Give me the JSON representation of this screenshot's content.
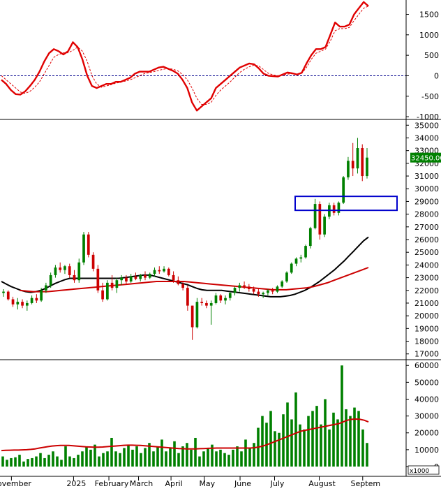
{
  "chart_data": [
    {
      "panel": "oscillator",
      "type": "line",
      "y_ticks": [
        -1000,
        -500,
        0,
        500,
        1000,
        1500
      ],
      "ylim": [
        -1050,
        1850
      ],
      "zero_line": true,
      "colors": {
        "main": "#e00000",
        "signal": "#e00000",
        "zero": "#00008b"
      },
      "series": [
        {
          "style": "solid",
          "values": [
            -100,
            -200,
            -350,
            -450,
            -460,
            -380,
            -250,
            -100,
            100,
            350,
            550,
            650,
            600,
            520,
            600,
            820,
            700,
            400,
            0,
            -250,
            -300,
            -250,
            -200,
            -200,
            -150,
            -150,
            -100,
            -50,
            50,
            100,
            100,
            100,
            150,
            200,
            220,
            170,
            120,
            50,
            -100,
            -300,
            -650,
            -850,
            -750,
            -650,
            -550,
            -300,
            -200,
            -100,
            0,
            100,
            200,
            250,
            300,
            280,
            180,
            50,
            0,
            -10,
            -20,
            30,
            80,
            60,
            30,
            70,
            300,
            500,
            650,
            650,
            700,
            1000,
            1300,
            1200,
            1200,
            1250,
            1500,
            1650,
            1800,
            1700
          ]
        },
        {
          "style": "dashed",
          "values": [
            0,
            -100,
            -200,
            -300,
            -400,
            -430,
            -380,
            -280,
            -150,
            50,
            250,
            450,
            520,
            560,
            560,
            620,
            700,
            600,
            350,
            0,
            -200,
            -280,
            -250,
            -220,
            -180,
            -160,
            -130,
            -100,
            -50,
            0,
            50,
            80,
            100,
            130,
            160,
            180,
            160,
            120,
            30,
            -100,
            -300,
            -550,
            -700,
            -700,
            -650,
            -480,
            -350,
            -250,
            -150,
            -30,
            80,
            160,
            220,
            260,
            240,
            150,
            60,
            20,
            0,
            10,
            40,
            50,
            40,
            60,
            200,
            400,
            550,
            600,
            650,
            850,
            1100,
            1150,
            1150,
            1180,
            1350,
            1500,
            1650,
            1700
          ]
        }
      ]
    },
    {
      "panel": "price",
      "type": "candlestick",
      "y_ticks": [
        17000,
        18000,
        19000,
        20000,
        21000,
        22000,
        23000,
        24000,
        25000,
        26000,
        27000,
        28000,
        29000,
        30000,
        31000,
        32000,
        33000,
        34000,
        35000
      ],
      "ylim": [
        16600,
        35400
      ],
      "last_price": "32450.00",
      "colors": {
        "up": "#008000",
        "down": "#cc0000",
        "ma_long": "#000000",
        "ma_short": "#cc0000",
        "box": "#0000cc",
        "price_tag": "#008000"
      },
      "candles": [
        [
          21800,
          22100,
          21500,
          21900
        ],
        [
          21900,
          22000,
          21200,
          21300
        ],
        [
          21300,
          21500,
          20700,
          20900
        ],
        [
          20900,
          21400,
          20500,
          21100
        ],
        [
          21100,
          21300,
          20600,
          20800
        ],
        [
          20800,
          21200,
          20400,
          21000
        ],
        [
          21000,
          21600,
          20900,
          21400
        ],
        [
          21400,
          21700,
          21000,
          21200
        ],
        [
          21200,
          22200,
          21100,
          22000
        ],
        [
          22000,
          22600,
          21800,
          22400
        ],
        [
          22400,
          23400,
          22200,
          23200
        ],
        [
          23200,
          24000,
          23000,
          23800
        ],
        [
          23800,
          24200,
          23400,
          23600
        ],
        [
          23600,
          24000,
          23300,
          23900
        ],
        [
          23900,
          24100,
          23000,
          23200
        ],
        [
          23200,
          23600,
          22600,
          22800
        ],
        [
          22800,
          24500,
          22600,
          24200
        ],
        [
          24200,
          26600,
          24000,
          26400
        ],
        [
          26400,
          26600,
          24600,
          24800
        ],
        [
          24800,
          25000,
          23500,
          23700
        ],
        [
          23700,
          24000,
          21800,
          22000
        ],
        [
          22000,
          22600,
          21100,
          21300
        ],
        [
          21300,
          22800,
          21200,
          22600
        ],
        [
          22600,
          23200,
          22000,
          22200
        ],
        [
          22200,
          23000,
          21800,
          22800
        ],
        [
          22800,
          23200,
          22400,
          23000
        ],
        [
          23000,
          23200,
          22500,
          22700
        ],
        [
          22700,
          23300,
          22600,
          23100
        ],
        [
          23100,
          23400,
          22800,
          22900
        ],
        [
          22900,
          23300,
          22700,
          23200
        ],
        [
          23200,
          23500,
          22800,
          23000
        ],
        [
          23000,
          23400,
          22900,
          23300
        ],
        [
          23300,
          23800,
          23100,
          23600
        ],
        [
          23600,
          23900,
          23300,
          23500
        ],
        [
          23500,
          23900,
          23400,
          23700
        ],
        [
          23700,
          23800,
          23100,
          23200
        ],
        [
          23200,
          23500,
          22600,
          22800
        ],
        [
          22800,
          23100,
          22400,
          22500
        ],
        [
          22500,
          22700,
          22000,
          22200
        ],
        [
          22200,
          22400,
          20400,
          20800
        ],
        [
          20800,
          20800,
          18100,
          19100
        ],
        [
          19100,
          21400,
          19000,
          21100
        ],
        [
          21100,
          21400,
          20800,
          21000
        ],
        [
          21000,
          21200,
          20600,
          20800
        ],
        [
          20800,
          21200,
          19300,
          21000
        ],
        [
          21000,
          21800,
          20900,
          21600
        ],
        [
          21600,
          21700,
          21000,
          21200
        ],
        [
          21200,
          21600,
          20900,
          21400
        ],
        [
          21400,
          21900,
          21200,
          21800
        ],
        [
          21800,
          22300,
          21600,
          22200
        ],
        [
          22200,
          22600,
          21900,
          22400
        ],
        [
          22400,
          22700,
          22100,
          22300
        ],
        [
          22300,
          22500,
          21900,
          22100
        ],
        [
          22100,
          22300,
          21700,
          21900
        ],
        [
          21900,
          22100,
          21500,
          21700
        ],
        [
          21700,
          21900,
          21400,
          21800
        ],
        [
          21800,
          22100,
          21600,
          22000
        ],
        [
          22000,
          22200,
          21700,
          21900
        ],
        [
          21900,
          22400,
          21800,
          22300
        ],
        [
          22300,
          22800,
          22200,
          22700
        ],
        [
          22700,
          23500,
          22600,
          23400
        ],
        [
          23400,
          24200,
          23300,
          24100
        ],
        [
          24100,
          24600,
          23900,
          24500
        ],
        [
          24500,
          24800,
          24200,
          24600
        ],
        [
          24600,
          25600,
          24500,
          25500
        ],
        [
          25500,
          27000,
          25300,
          26900
        ],
        [
          26900,
          29200,
          26800,
          28800
        ],
        [
          28800,
          29000,
          26000,
          26400
        ],
        [
          26400,
          28000,
          26200,
          27800
        ],
        [
          27800,
          28900,
          27600,
          28700
        ],
        [
          28700,
          28900,
          27900,
          28100
        ],
        [
          28100,
          29000,
          27900,
          28900
        ],
        [
          28900,
          31000,
          28800,
          30900
        ],
        [
          30900,
          32500,
          30700,
          32200
        ],
        [
          32200,
          33600,
          31000,
          31600
        ],
        [
          31600,
          34000,
          31200,
          33200
        ],
        [
          33200,
          33500,
          30600,
          31000
        ],
        [
          31000,
          33200,
          30800,
          32450
        ]
      ],
      "ma_long": [
        22700,
        22500,
        22300,
        22150,
        22000,
        21900,
        21850,
        21900,
        22000,
        22150,
        22350,
        22550,
        22700,
        22850,
        22950,
        22950,
        22950,
        22950,
        22950,
        22950,
        22950,
        22950,
        22950,
        22950,
        22950,
        23000,
        23050,
        23100,
        23150,
        23200,
        23200,
        23150,
        23050,
        22950,
        22850,
        22750,
        22650,
        22550,
        22450,
        22300,
        22150,
        22050,
        22000,
        22000,
        22000,
        22000,
        21950,
        21900,
        21850,
        21800,
        21750,
        21700,
        21650,
        21600,
        21550,
        21500,
        21500,
        21500,
        21550,
        21600,
        21700,
        21850,
        22000,
        22200,
        22450,
        22700,
        23000,
        23300,
        23600,
        23950,
        24300,
        24700,
        25100,
        25500,
        25900,
        26200
      ],
      "ma_short": [
        22000,
        21950,
        21900,
        21900,
        21900,
        21950,
        22000,
        22050,
        22100,
        22150,
        22200,
        22250,
        22300,
        22350,
        22400,
        22450,
        22500,
        22550,
        22600,
        22650,
        22700,
        22700,
        22700,
        22700,
        22700,
        22650,
        22600,
        22550,
        22500,
        22450,
        22400,
        22350,
        22300,
        22250,
        22200,
        22150,
        22100,
        22050,
        22050,
        22050,
        22100,
        22150,
        22200,
        22300,
        22450,
        22600,
        22800,
        23000,
        23200,
        23400,
        23600,
        23800
      ]
    },
    {
      "panel": "volume",
      "type": "bar",
      "y_ticks": [
        0,
        10000,
        20000,
        30000,
        40000,
        50000,
        60000
      ],
      "ylim": [
        0,
        63000
      ],
      "unit_label": "x1000",
      "colors": {
        "bars": "#008000",
        "ma": "#cc0000"
      },
      "values": [
        6000,
        4000,
        5000,
        5500,
        7000,
        3000,
        4500,
        5000,
        6000,
        8000,
        5000,
        7000,
        9000,
        6000,
        4000,
        12000,
        6000,
        5000,
        7000,
        9000,
        12000,
        10000,
        13000,
        6000,
        8000,
        9000,
        17000,
        9000,
        8000,
        11000,
        13000,
        10000,
        12000,
        8000,
        11000,
        14000,
        9000,
        12000,
        16000,
        9000,
        11000,
        15000,
        8000,
        12000,
        14000,
        10000,
        17000,
        6000,
        9000,
        11000,
        13000,
        9000,
        10000,
        8000,
        7000,
        10000,
        12000,
        9000,
        16000,
        11000,
        14000,
        23000,
        30000,
        26000,
        33000,
        21000,
        20000,
        31000,
        38000,
        28000,
        44000,
        25000,
        22000,
        30000,
        33000,
        36000,
        25000,
        40000,
        22000,
        32000,
        28000,
        60000,
        34000,
        30000,
        35000,
        33000,
        22000,
        14000
      ],
      "ma": [
        9500,
        9600,
        9700,
        9800,
        9800,
        9900,
        10000,
        10200,
        10500,
        11000,
        11400,
        11800,
        12200,
        12400,
        12500,
        12500,
        12500,
        12300,
        12100,
        11900,
        11700,
        11600,
        11500,
        11500,
        11600,
        11800,
        12000,
        12200,
        12400,
        12600,
        12700,
        12700,
        12600,
        12500,
        12300,
        12100,
        11900,
        11700,
        11500,
        11300,
        11100,
        10900,
        10700,
        10600,
        10500,
        10500,
        10500,
        10600,
        10700,
        10800,
        10900,
        11000,
        11000,
        11000,
        11000,
        11000,
        11000,
        11000,
        11000,
        11000,
        11200,
        11600,
        12200,
        13000,
        14000,
        15000,
        16000,
        17000,
        18000,
        19000,
        20000,
        21000,
        21500,
        22000,
        22500,
        23000,
        23500,
        24000,
        24500,
        25000,
        25500,
        26500,
        27500,
        28000,
        28200,
        28000,
        27500,
        26500
      ]
    },
    {
      "panel": "time_axis",
      "labels": [
        {
          "text": "ovember",
          "pos": 0.035
        },
        {
          "text": "2025",
          "pos": 0.188
        },
        {
          "text": "February",
          "pos": 0.275
        },
        {
          "text": "March",
          "pos": 0.348
        },
        {
          "text": "April",
          "pos": 0.428
        },
        {
          "text": "May",
          "pos": 0.51
        },
        {
          "text": "June",
          "pos": 0.598
        },
        {
          "text": "July",
          "pos": 0.683
        },
        {
          "text": "August",
          "pos": 0.793
        },
        {
          "text": "Septem",
          "pos": 0.9
        }
      ]
    }
  ]
}
